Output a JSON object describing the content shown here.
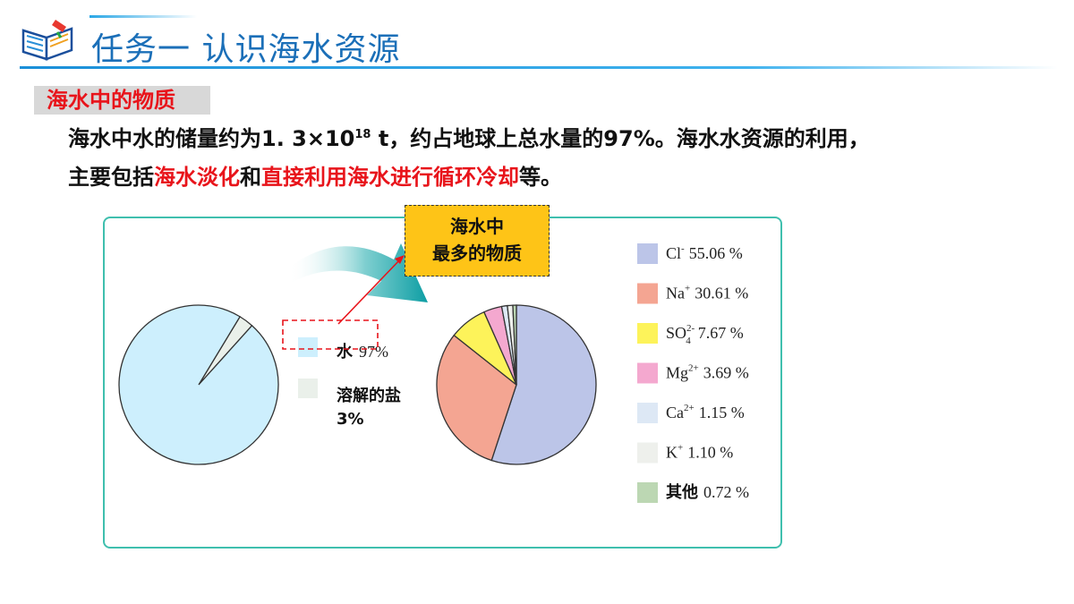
{
  "header": {
    "title": "任务一  认识海水资源"
  },
  "section": {
    "label": "海水中的物质"
  },
  "paragraph": {
    "line1_prefix": "海水中水的储量约为1. 3×10",
    "line1_exp": "18",
    "line1_suffix": " t，约占地球上总水量的97%。海水水资源的利用，",
    "line2_a": "主要包括",
    "line2_b": "海水淡化",
    "line2_c": "和",
    "line2_d": "直接利用海水进行循环冷却",
    "line2_e": "等。"
  },
  "callout": {
    "line1": "海水中",
    "line2": "最多的物质"
  },
  "chart_data": [
    {
      "type": "pie",
      "labels": [
        "水",
        "溶解的盐"
      ],
      "values": [
        97,
        3
      ],
      "colors": [
        "#cdeffd",
        "#eaf0ea"
      ],
      "legend": [
        {
          "label": "水",
          "value": "97%",
          "color": "#cdeffd"
        },
        {
          "label": "溶解的盐",
          "value": "3%",
          "color": "#eaf0ea"
        }
      ]
    },
    {
      "type": "pie",
      "labels": [
        "Cl-",
        "Na+",
        "SO42-",
        "Mg2+",
        "Ca2+",
        "K+",
        "其他"
      ],
      "values": [
        55.06,
        30.61,
        7.67,
        3.69,
        1.15,
        1.1,
        0.72
      ],
      "colors": [
        "#bcc5e8",
        "#f4a592",
        "#fdf35a",
        "#f4a8cf",
        "#dde8f5",
        "#eef0ec",
        "#bcd7b3"
      ],
      "legend": [
        {
          "base": "Cl",
          "sup": "-",
          "sub": "",
          "value": "55.06 %",
          "color": "#bcc5e8"
        },
        {
          "base": "Na",
          "sup": "+",
          "sub": "",
          "value": "30.61 %",
          "color": "#f4a592"
        },
        {
          "base": "SO",
          "sup": "2-",
          "sub": "4",
          "value": "7.67 %",
          "color": "#fdf35a"
        },
        {
          "base": "Mg",
          "sup": "2+",
          "sub": "",
          "value": "3.69 %",
          "color": "#f4a8cf"
        },
        {
          "base": "Ca",
          "sup": "2+",
          "sub": "",
          "value": "1.15 %",
          "color": "#dde8f5"
        },
        {
          "base": "K",
          "sup": "+",
          "sub": "",
          "value": "1.10 %",
          "color": "#eef0ec"
        },
        {
          "base": "其他",
          "sup": "",
          "sub": "",
          "value": "0.72 %",
          "color": "#bcd7b3"
        }
      ]
    }
  ]
}
